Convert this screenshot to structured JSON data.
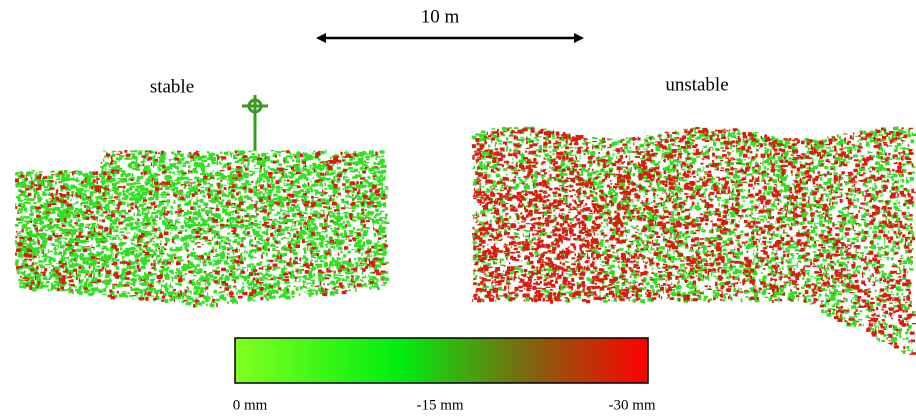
{
  "scale_bar": {
    "label": "10 m"
  },
  "panels": [
    {
      "label": "stable"
    },
    {
      "label": "unstable"
    }
  ],
  "colorbar": {
    "labels": [
      "0 mm",
      "-15 mm",
      "-30 mm"
    ]
  }
}
